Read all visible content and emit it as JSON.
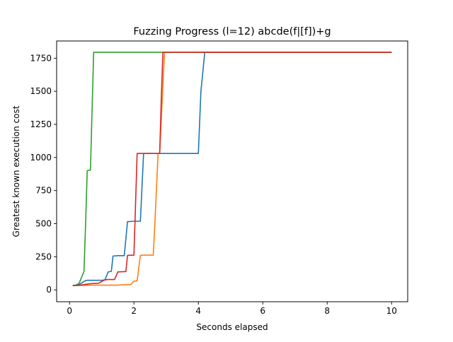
{
  "chart_data": {
    "type": "line",
    "title": "Fuzzing Progress (l=12) abcde(f|[f])+g",
    "xlabel": "Seconds elapsed",
    "ylabel": "Greatest known execution cost",
    "xlim": [
      -0.4,
      10.5
    ],
    "ylim": [
      -90,
      1880
    ],
    "xticks": [
      0,
      2,
      4,
      6,
      8,
      10
    ],
    "yticks": [
      0,
      250,
      500,
      750,
      1000,
      1250,
      1500,
      1750
    ],
    "grid": false,
    "legend": "none",
    "series": [
      {
        "color": "#1f77b4",
        "x": [
          0.1,
          0.3,
          0.5,
          0.55,
          1.0,
          1.1,
          1.2,
          1.3,
          1.35,
          1.5,
          1.7,
          1.8,
          2.0,
          2.2,
          2.3,
          2.35,
          2.5,
          3.0,
          4.0,
          4.08,
          4.2,
          10.0
        ],
        "y": [
          32,
          40,
          70,
          72,
          72,
          75,
          135,
          140,
          255,
          258,
          258,
          515,
          518,
          518,
          1030,
          1030,
          1030,
          1030,
          1030,
          1500,
          1795,
          1795
        ]
      },
      {
        "color": "#ff7f0e",
        "x": [
          0.1,
          0.4,
          0.7,
          1.0,
          1.5,
          1.6,
          1.7,
          1.9,
          2.0,
          2.1,
          2.2,
          2.3,
          2.6,
          2.65,
          2.75,
          2.8,
          2.95,
          3.0,
          10.0
        ],
        "y": [
          32,
          33,
          35,
          35,
          35,
          38,
          38,
          40,
          65,
          68,
          260,
          262,
          262,
          500,
          1030,
          1030,
          1795,
          1795,
          1795
        ]
      },
      {
        "color": "#2ca02c",
        "x": [
          0.1,
          0.2,
          0.3,
          0.35,
          0.45,
          0.5,
          0.55,
          0.65,
          0.75,
          10.0
        ],
        "y": [
          32,
          35,
          50,
          80,
          140,
          500,
          900,
          905,
          1795,
          1795
        ]
      },
      {
        "color": "#d62728",
        "x": [
          0.1,
          0.3,
          0.6,
          0.9,
          1.1,
          1.2,
          1.4,
          1.5,
          1.75,
          1.8,
          2.0,
          2.1,
          2.2,
          2.4,
          2.8,
          2.85,
          2.9,
          3.0,
          10.0
        ],
        "y": [
          32,
          34,
          45,
          50,
          75,
          78,
          78,
          135,
          138,
          260,
          262,
          1030,
          1030,
          1030,
          1030,
          1450,
          1795,
          1795,
          1795
        ]
      }
    ]
  }
}
